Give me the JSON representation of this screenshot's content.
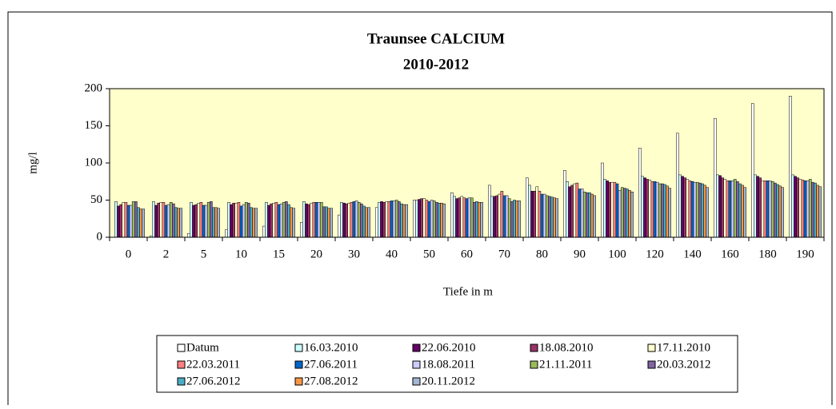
{
  "chart_data": {
    "type": "bar",
    "title": [
      "Traunsee  CALCIUM",
      "2010-2012"
    ],
    "y_label": "mg/l",
    "x_label": "Tiefe in m",
    "categories": [
      "0",
      "2",
      "5",
      "10",
      "15",
      "20",
      "30",
      "40",
      "50",
      "60",
      "70",
      "80",
      "90",
      "100",
      "120",
      "140",
      "160",
      "180",
      "190"
    ],
    "ylim": [
      0,
      200
    ],
    "yticks": [
      0,
      50,
      100,
      150,
      200
    ],
    "plot_background": "#ffffcc",
    "series": [
      {
        "name": "Datum",
        "color": "#ffffff",
        "values": [
          0,
          2,
          5,
          10,
          15,
          20,
          30,
          40,
          50,
          60,
          70,
          80,
          90,
          100,
          120,
          140,
          160,
          180,
          190
        ]
      },
      {
        "name": "16.03.2010",
        "color": "#ccffff",
        "values": [
          48,
          48,
          47,
          47,
          47,
          48,
          47,
          47,
          50,
          55,
          55,
          70,
          75,
          78,
          82,
          84,
          84,
          84,
          84
        ]
      },
      {
        "name": "22.06.2010",
        "color": "#660066",
        "values": [
          42,
          43,
          43,
          44,
          43,
          45,
          46,
          48,
          51,
          52,
          55,
          62,
          68,
          76,
          80,
          82,
          83,
          82,
          82
        ]
      },
      {
        "name": "18.08.2010",
        "color": "#993366",
        "values": [
          44,
          46,
          44,
          46,
          45,
          44,
          45,
          47,
          52,
          53,
          56,
          62,
          70,
          74,
          78,
          80,
          80,
          80,
          80
        ]
      },
      {
        "name": "17.11.2010",
        "color": "#ffffcc",
        "values": [
          47,
          47,
          46,
          46,
          46,
          46,
          46,
          48,
          52,
          55,
          58,
          68,
          72,
          74,
          77,
          78,
          78,
          76,
          78
        ]
      },
      {
        "name": "22.03.2011",
        "color": "#ff8080",
        "values": [
          47,
          47,
          47,
          47,
          47,
          47,
          47,
          48,
          50,
          53,
          62,
          62,
          73,
          74,
          75,
          76,
          76,
          76,
          77
        ]
      },
      {
        "name": "27.06.2011",
        "color": "#0066cc",
        "values": [
          43,
          43,
          43,
          42,
          44,
          47,
          48,
          49,
          48,
          52,
          56,
          58,
          65,
          72,
          75,
          75,
          76,
          76,
          76
        ]
      },
      {
        "name": "18.08.2011",
        "color": "#ccccff",
        "values": [
          43,
          44,
          43,
          44,
          45,
          47,
          49,
          49,
          50,
          53,
          56,
          58,
          65,
          63,
          74,
          74,
          76,
          76,
          76
        ]
      },
      {
        "name": "21.11.2011",
        "color": "#9bbb59",
        "values": [
          48,
          47,
          47,
          47,
          47,
          47,
          47,
          50,
          49,
          53,
          52,
          56,
          61,
          67,
          72,
          74,
          78,
          75,
          78
        ]
      },
      {
        "name": "20.03.2012",
        "color": "#8064a2",
        "values": [
          48,
          45,
          48,
          46,
          48,
          41,
          45,
          48,
          47,
          47,
          48,
          55,
          60,
          66,
          72,
          73,
          75,
          73,
          74
        ]
      },
      {
        "name": "27.06.2012",
        "color": "#4bacc6",
        "values": [
          40,
          40,
          40,
          40,
          44,
          41,
          42,
          45,
          46,
          48,
          50,
          54,
          60,
          65,
          71,
          72,
          72,
          71,
          73
        ]
      },
      {
        "name": "27.08.2012",
        "color": "#f79646",
        "values": [
          38,
          39,
          40,
          39,
          40,
          39,
          40,
          44,
          46,
          47,
          49,
          53,
          58,
          63,
          69,
          70,
          70,
          69,
          70
        ]
      },
      {
        "name": "20.11.2012",
        "color": "#a5b6d2",
        "values": [
          38,
          39,
          39,
          39,
          39,
          39,
          40,
          44,
          45,
          47,
          49,
          52,
          56,
          61,
          66,
          67,
          67,
          67,
          68
        ]
      }
    ]
  }
}
